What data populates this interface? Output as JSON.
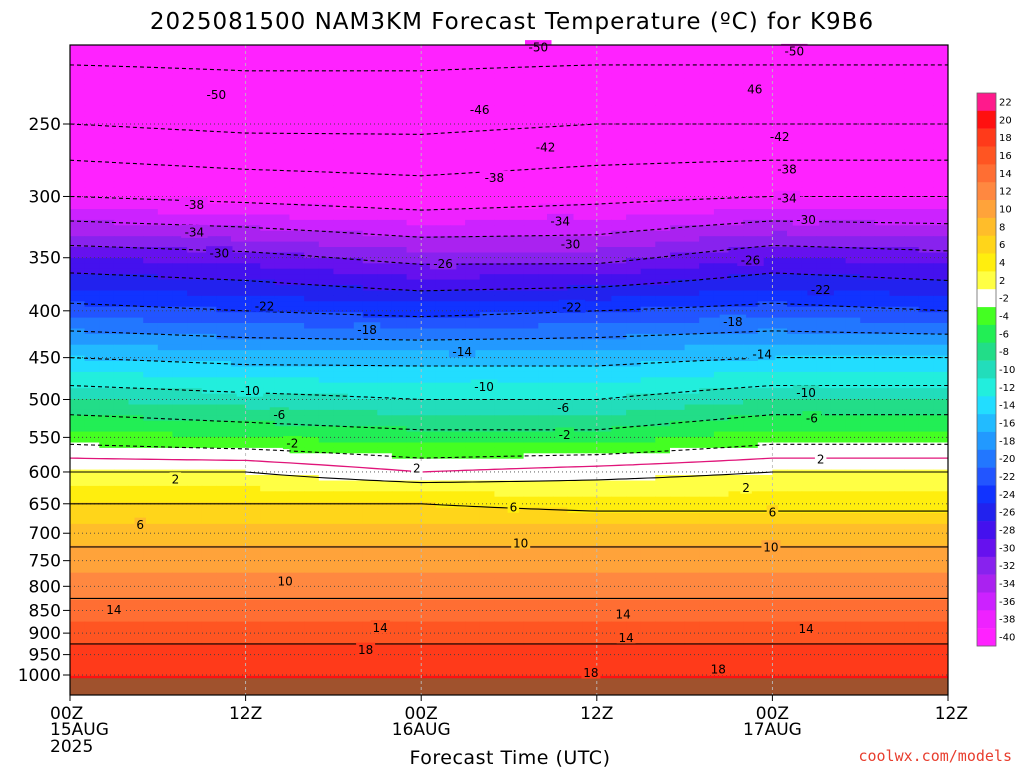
{
  "title": "2025081500 NAM3KM Forecast Temperature (ºC) for K9B6",
  "credit": "coolwx.com/models",
  "chart_data": {
    "type": "heatmap",
    "title": "2025081500 NAM3KM Forecast Temperature (ºC) for K9B6",
    "xlabel": "Forecast Time (UTC)",
    "ylabel": "",
    "x_range_hours": [
      0,
      60
    ],
    "y_range_hpa": [
      1030,
      200
    ],
    "y_scale": "log",
    "x_ticks": [
      {
        "hour": 0,
        "label": "00Z",
        "sub1": "15AUG",
        "sub2": "2025"
      },
      {
        "hour": 12,
        "label": "12Z",
        "sub1": "",
        "sub2": ""
      },
      {
        "hour": 24,
        "label": "00Z",
        "sub1": "16AUG",
        "sub2": ""
      },
      {
        "hour": 36,
        "label": "12Z",
        "sub1": "",
        "sub2": ""
      },
      {
        "hour": 48,
        "label": "00Z",
        "sub1": "17AUG",
        "sub2": ""
      },
      {
        "hour": 60,
        "label": "12Z",
        "sub1": "",
        "sub2": ""
      }
    ],
    "y_ticks": [
      250,
      300,
      350,
      400,
      450,
      500,
      550,
      600,
      650,
      700,
      750,
      800,
      850,
      900,
      950,
      1000
    ],
    "grid": true,
    "temperature_profile": {
      "levels_hpa": [
        200,
        250,
        300,
        350,
        400,
        450,
        500,
        550,
        600,
        650,
        700,
        750,
        800,
        850,
        900,
        950,
        1000,
        1030
      ],
      "hours": [
        0,
        12,
        24,
        36,
        48,
        60
      ],
      "values": [
        [
          -52,
          -46,
          -38,
          -28,
          -21,
          -14,
          -8,
          -3,
          2,
          6,
          9,
          11,
          13,
          15,
          17,
          19,
          20,
          20
        ],
        [
          -52,
          -47,
          -39,
          -29,
          -22,
          -15,
          -9,
          -4,
          2,
          6,
          9,
          11,
          13,
          15,
          17,
          19,
          20,
          20
        ],
        [
          -52,
          -47,
          -40,
          -31,
          -23,
          -15,
          -10,
          -5,
          0,
          6,
          9,
          11,
          13,
          15,
          17,
          19,
          20,
          20
        ],
        [
          -52,
          -46,
          -39,
          -31,
          -22,
          -15,
          -10,
          -5,
          1,
          5,
          9,
          11,
          13,
          15,
          17,
          19,
          20,
          20
        ],
        [
          -52,
          -46,
          -38,
          -28,
          -21,
          -14,
          -8,
          -3,
          2,
          5,
          9,
          11,
          13,
          15,
          17,
          19,
          20,
          20
        ],
        [
          -52,
          -46,
          -38,
          -29,
          -22,
          -14,
          -8,
          -3,
          2,
          5,
          9,
          11,
          13,
          15,
          17,
          19,
          20,
          20
        ]
      ]
    },
    "contour_labels": [
      {
        "text": "-50",
        "hour": 10,
        "hpa": 232
      },
      {
        "text": "-50",
        "hour": 32,
        "hpa": 206
      },
      {
        "text": "-50",
        "hour": 49.5,
        "hpa": 208
      },
      {
        "text": "46",
        "hour": 46.8,
        "hpa": 229
      },
      {
        "text": "-46",
        "hour": 28,
        "hpa": 241
      },
      {
        "text": "-42",
        "hour": 32.5,
        "hpa": 265
      },
      {
        "text": "-42",
        "hour": 48.5,
        "hpa": 258
      },
      {
        "text": "-38",
        "hour": 8.5,
        "hpa": 306
      },
      {
        "text": "-38",
        "hour": 29,
        "hpa": 286
      },
      {
        "text": "-38",
        "hour": 49,
        "hpa": 280
      },
      {
        "text": "-34",
        "hour": 8.5,
        "hpa": 328
      },
      {
        "text": "-34",
        "hour": 33.5,
        "hpa": 319
      },
      {
        "text": "-34",
        "hour": 49,
        "hpa": 301
      },
      {
        "text": "-30",
        "hour": 10.2,
        "hpa": 346
      },
      {
        "text": "-30",
        "hour": 34.2,
        "hpa": 338
      },
      {
        "text": "-30",
        "hour": 50.3,
        "hpa": 318
      },
      {
        "text": "-26",
        "hour": 25.5,
        "hpa": 355
      },
      {
        "text": "-26",
        "hour": 46.5,
        "hpa": 352
      },
      {
        "text": "-22",
        "hour": 13.3,
        "hpa": 395
      },
      {
        "text": "-22",
        "hour": 34.3,
        "hpa": 396
      },
      {
        "text": "-22",
        "hour": 51.3,
        "hpa": 379
      },
      {
        "text": "-18",
        "hour": 20.3,
        "hpa": 419
      },
      {
        "text": "-18",
        "hour": 45.3,
        "hpa": 411
      },
      {
        "text": "-14",
        "hour": 26.8,
        "hpa": 443
      },
      {
        "text": "-14",
        "hour": 47.3,
        "hpa": 446
      },
      {
        "text": "-10",
        "hour": 12.3,
        "hpa": 489
      },
      {
        "text": "-10",
        "hour": 28.3,
        "hpa": 484
      },
      {
        "text": "-10",
        "hour": 50.3,
        "hpa": 491
      },
      {
        "text": "-6",
        "hour": 14.3,
        "hpa": 519
      },
      {
        "text": "-6",
        "hour": 33.7,
        "hpa": 510
      },
      {
        "text": "-6",
        "hour": 50.7,
        "hpa": 524
      },
      {
        "text": "-2",
        "hour": 15.2,
        "hpa": 558
      },
      {
        "text": "-2",
        "hour": 33.8,
        "hpa": 546
      },
      {
        "text": "2",
        "hour": 7.2,
        "hpa": 611
      },
      {
        "text": "2",
        "hour": 23.7,
        "hpa": 594
      },
      {
        "text": "2",
        "hour": 51.3,
        "hpa": 581
      },
      {
        "text": "2",
        "hour": 46.2,
        "hpa": 624
      },
      {
        "text": "6",
        "hour": 4.8,
        "hpa": 685
      },
      {
        "text": "6",
        "hour": 30.3,
        "hpa": 655
      },
      {
        "text": "6",
        "hour": 48,
        "hpa": 664
      },
      {
        "text": "10",
        "hour": 14.7,
        "hpa": 789
      },
      {
        "text": "10",
        "hour": 30.8,
        "hpa": 717
      },
      {
        "text": "10",
        "hour": 47.9,
        "hpa": 725
      },
      {
        "text": "14",
        "hour": 3,
        "hpa": 848
      },
      {
        "text": "14",
        "hour": 21.2,
        "hpa": 887
      },
      {
        "text": "14",
        "hour": 37.8,
        "hpa": 858
      },
      {
        "text": "14",
        "hour": 38,
        "hpa": 910
      },
      {
        "text": "14",
        "hour": 50.3,
        "hpa": 890
      },
      {
        "text": "18",
        "hour": 20.2,
        "hpa": 938
      },
      {
        "text": "18",
        "hour": 35.6,
        "hpa": 994
      },
      {
        "text": "18",
        "hour": 44.3,
        "hpa": 985
      }
    ],
    "colorbar": {
      "levels": [
        22,
        20,
        18,
        16,
        14,
        12,
        10,
        8,
        6,
        4,
        2,
        -2,
        -4,
        -6,
        -8,
        -10,
        -12,
        -14,
        -16,
        -18,
        -20,
        -22,
        -24,
        -26,
        -28,
        -30,
        -32,
        -34,
        -36,
        -38,
        -40
      ],
      "colors": [
        "#ff1a8c",
        "#ff1010",
        "#ff3a1a",
        "#ff5522",
        "#ff6e33",
        "#ff8840",
        "#ffa33a",
        "#ffbd2a",
        "#ffd51a",
        "#ffee0e",
        "#ffff44",
        "#ffffff",
        "#44ff22",
        "#22ee55",
        "#22dd88",
        "#22ddbb",
        "#22eedd",
        "#22ddff",
        "#22bbff",
        "#2299ff",
        "#2277ff",
        "#2255ff",
        "#1133ff",
        "#2222ee",
        "#4411ee",
        "#6611ee",
        "#8822ee",
        "#aa22f0",
        "#cc22ff",
        "#ee22ff",
        "#ff22ff"
      ]
    },
    "ground_color": "#a0522d",
    "freezing_line_color": "#e0157a"
  }
}
